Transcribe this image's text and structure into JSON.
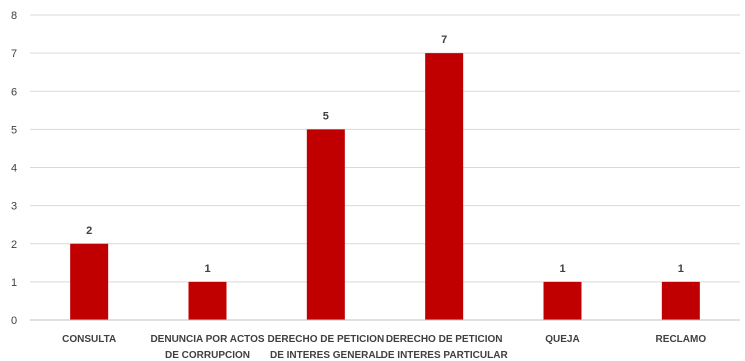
{
  "chart_data": {
    "type": "bar",
    "categories": [
      [
        "CONSULTA"
      ],
      [
        "DENUNCIA POR ACTOS",
        "DE CORRUPCION"
      ],
      [
        "DERECHO DE PETICION",
        "DE INTERES GENERAL"
      ],
      [
        "DERECHO DE PETICION",
        "DE INTERES PARTICULAR"
      ],
      [
        "QUEJA"
      ],
      [
        "RECLAMO"
      ]
    ],
    "values": [
      2,
      1,
      5,
      7,
      1,
      1
    ],
    "ylim": [
      0,
      8
    ],
    "yticks": [
      0,
      1,
      2,
      3,
      4,
      5,
      6,
      7,
      8
    ],
    "grid": true,
    "bar_color": "#c00000",
    "data_labels": true
  }
}
